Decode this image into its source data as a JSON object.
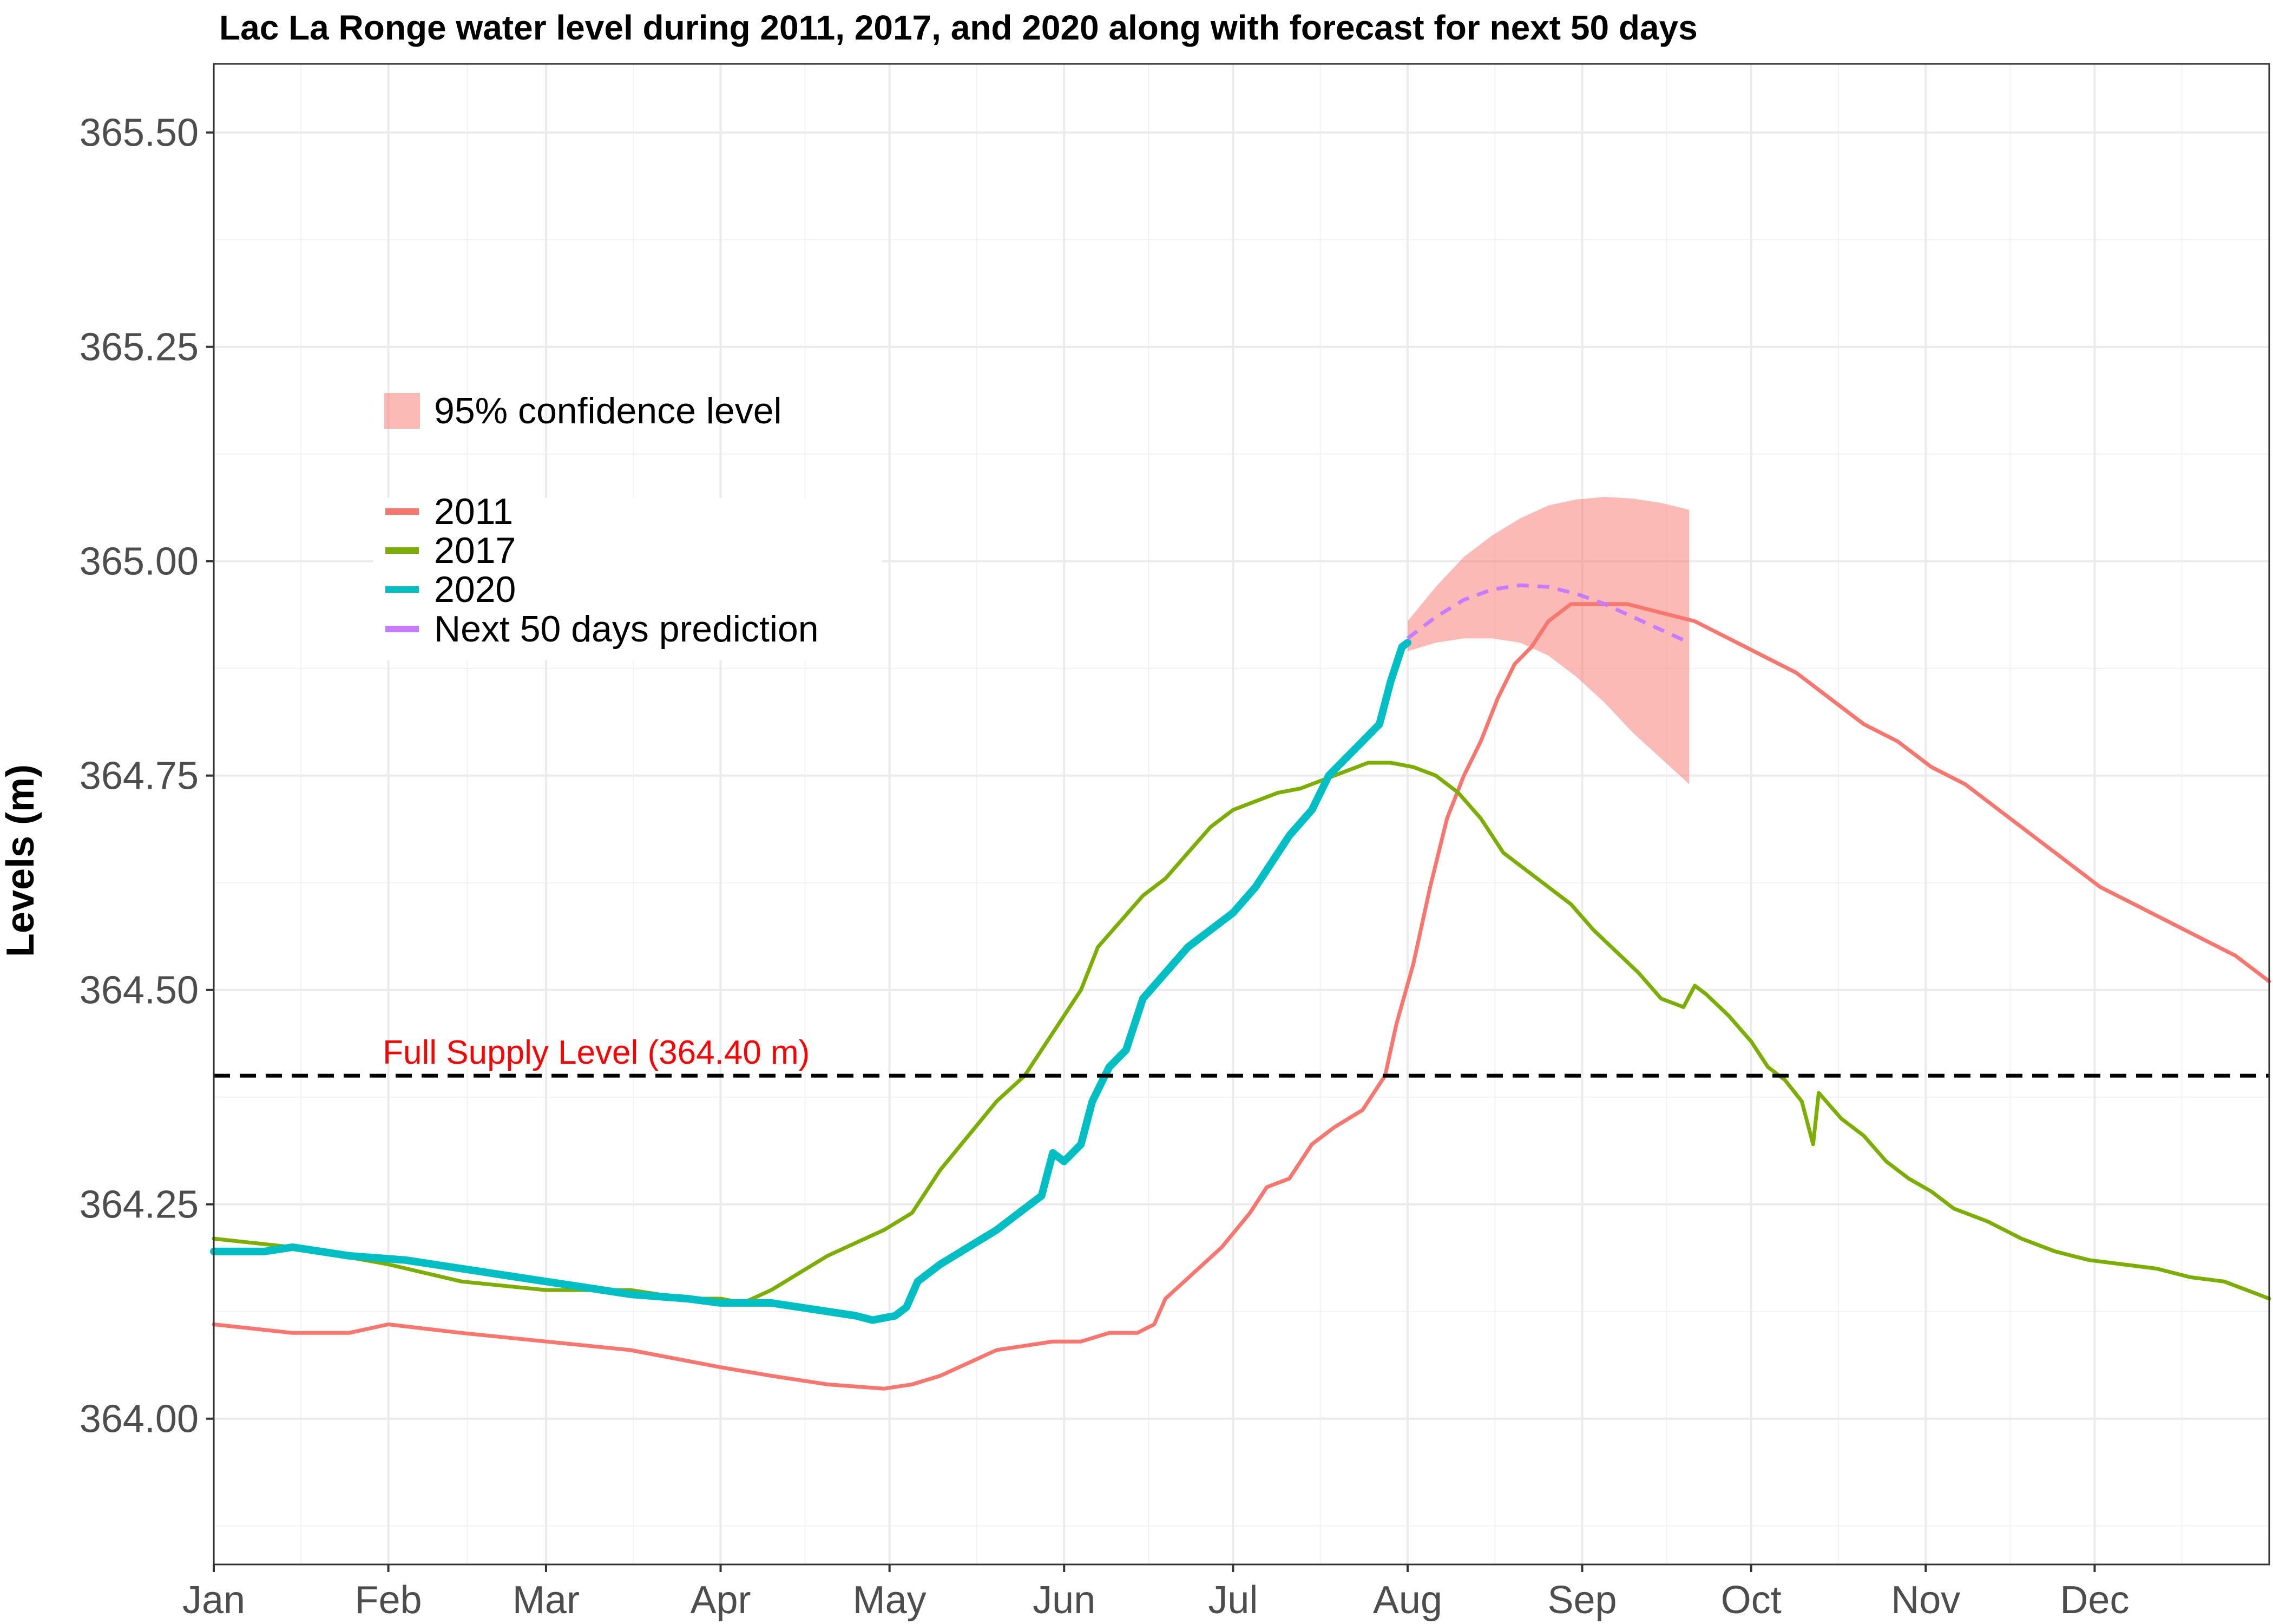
{
  "chart_data": {
    "type": "line",
    "title": "Lac La Ronge water level during 2011, 2017, and 2020 along with forecast for next 50 days",
    "xlabel": "",
    "ylabel": "Levels (m)",
    "x_domain": [
      1,
      366
    ],
    "ylim": [
      363.83,
      365.58
    ],
    "y_ticks": [
      364.0,
      364.25,
      364.5,
      364.75,
      365.0,
      365.25,
      365.5
    ],
    "y_tick_labels": [
      "364.00",
      "364.25",
      "364.50",
      "364.75",
      "365.00",
      "365.25",
      "365.50"
    ],
    "x_ticks": [
      {
        "day": 1,
        "label": "Jan"
      },
      {
        "day": 32,
        "label": "Feb"
      },
      {
        "day": 60,
        "label": "Mar"
      },
      {
        "day": 91,
        "label": "Apr"
      },
      {
        "day": 121,
        "label": "May"
      },
      {
        "day": 152,
        "label": "Jun"
      },
      {
        "day": 182,
        "label": "Jul"
      },
      {
        "day": 213,
        "label": "Aug"
      },
      {
        "day": 244,
        "label": "Sep"
      },
      {
        "day": 274,
        "label": "Oct"
      },
      {
        "day": 305,
        "label": "Nov"
      },
      {
        "day": 335,
        "label": "Dec"
      }
    ],
    "grid": true,
    "reference_line": {
      "y": 364.4,
      "label": "Full Supply Level (364.40 m)",
      "color": "#ff0000",
      "line_color": "#000000"
    },
    "series": [
      {
        "name": "2011",
        "color": "#f8766d",
        "width": 7,
        "points": [
          [
            1,
            364.11
          ],
          [
            15,
            364.1
          ],
          [
            25,
            364.1
          ],
          [
            32,
            364.11
          ],
          [
            45,
            364.1
          ],
          [
            60,
            364.09
          ],
          [
            75,
            364.08
          ],
          [
            91,
            364.06
          ],
          [
            100,
            364.05
          ],
          [
            110,
            364.04
          ],
          [
            120,
            364.035
          ],
          [
            125,
            364.04
          ],
          [
            130,
            364.05
          ],
          [
            135,
            364.065
          ],
          [
            140,
            364.08
          ],
          [
            145,
            364.085
          ],
          [
            150,
            364.09
          ],
          [
            155,
            364.09
          ],
          [
            160,
            364.1
          ],
          [
            165,
            364.1
          ],
          [
            168,
            364.11
          ],
          [
            170,
            364.14
          ],
          [
            175,
            364.17
          ],
          [
            180,
            364.2
          ],
          [
            185,
            364.24
          ],
          [
            188,
            364.27
          ],
          [
            192,
            364.28
          ],
          [
            196,
            364.32
          ],
          [
            200,
            364.34
          ],
          [
            205,
            364.36
          ],
          [
            209,
            364.4
          ],
          [
            211,
            364.46
          ],
          [
            214,
            364.53
          ],
          [
            217,
            364.62
          ],
          [
            220,
            364.7
          ],
          [
            223,
            364.75
          ],
          [
            226,
            364.79
          ],
          [
            229,
            364.84
          ],
          [
            232,
            364.88
          ],
          [
            235,
            364.9
          ],
          [
            238,
            364.93
          ],
          [
            242,
            364.95
          ],
          [
            246,
            364.95
          ],
          [
            252,
            364.95
          ],
          [
            258,
            364.94
          ],
          [
            264,
            364.93
          ],
          [
            270,
            364.91
          ],
          [
            276,
            364.89
          ],
          [
            282,
            364.87
          ],
          [
            288,
            364.84
          ],
          [
            294,
            364.81
          ],
          [
            300,
            364.79
          ],
          [
            306,
            364.76
          ],
          [
            312,
            364.74
          ],
          [
            318,
            364.71
          ],
          [
            324,
            364.68
          ],
          [
            330,
            364.65
          ],
          [
            336,
            364.62
          ],
          [
            342,
            364.6
          ],
          [
            348,
            364.58
          ],
          [
            354,
            364.56
          ],
          [
            360,
            364.54
          ],
          [
            366,
            364.51
          ]
        ]
      },
      {
        "name": "2017",
        "color": "#7cae00",
        "width": 7,
        "points": [
          [
            1,
            364.21
          ],
          [
            15,
            364.2
          ],
          [
            32,
            364.18
          ],
          [
            45,
            364.16
          ],
          [
            60,
            364.15
          ],
          [
            75,
            364.15
          ],
          [
            85,
            364.14
          ],
          [
            91,
            364.14
          ],
          [
            95,
            364.135
          ],
          [
            100,
            364.15
          ],
          [
            105,
            364.17
          ],
          [
            110,
            364.19
          ],
          [
            115,
            364.205
          ],
          [
            120,
            364.22
          ],
          [
            125,
            364.24
          ],
          [
            130,
            364.29
          ],
          [
            135,
            364.33
          ],
          [
            140,
            364.37
          ],
          [
            145,
            364.4
          ],
          [
            150,
            364.45
          ],
          [
            155,
            364.5
          ],
          [
            158,
            364.55
          ],
          [
            162,
            364.58
          ],
          [
            166,
            364.61
          ],
          [
            170,
            364.63
          ],
          [
            174,
            364.66
          ],
          [
            178,
            364.69
          ],
          [
            182,
            364.71
          ],
          [
            186,
            364.72
          ],
          [
            190,
            364.73
          ],
          [
            194,
            364.735
          ],
          [
            198,
            364.745
          ],
          [
            202,
            364.755
          ],
          [
            206,
            364.765
          ],
          [
            210,
            364.765
          ],
          [
            214,
            364.76
          ],
          [
            218,
            364.75
          ],
          [
            222,
            364.73
          ],
          [
            226,
            364.7
          ],
          [
            230,
            364.66
          ],
          [
            234,
            364.64
          ],
          [
            238,
            364.62
          ],
          [
            242,
            364.6
          ],
          [
            246,
            364.57
          ],
          [
            250,
            364.545
          ],
          [
            254,
            364.52
          ],
          [
            258,
            364.49
          ],
          [
            262,
            364.48
          ],
          [
            264,
            364.505
          ],
          [
            266,
            364.495
          ],
          [
            270,
            364.47
          ],
          [
            274,
            364.44
          ],
          [
            277,
            364.41
          ],
          [
            280,
            364.395
          ],
          [
            283,
            364.37
          ],
          [
            285,
            364.32
          ],
          [
            286,
            364.38
          ],
          [
            290,
            364.35
          ],
          [
            294,
            364.33
          ],
          [
            298,
            364.3
          ],
          [
            302,
            364.28
          ],
          [
            306,
            364.265
          ],
          [
            310,
            364.245
          ],
          [
            316,
            364.23
          ],
          [
            322,
            364.21
          ],
          [
            328,
            364.195
          ],
          [
            334,
            364.185
          ],
          [
            340,
            364.18
          ],
          [
            346,
            364.175
          ],
          [
            352,
            364.165
          ],
          [
            358,
            364.16
          ],
          [
            364,
            364.145
          ],
          [
            366,
            364.14
          ]
        ]
      },
      {
        "name": "2020",
        "color": "#00bfc4",
        "width": 14,
        "points": [
          [
            1,
            364.195
          ],
          [
            10,
            364.195
          ],
          [
            15,
            364.2
          ],
          [
            25,
            364.19
          ],
          [
            35,
            364.185
          ],
          [
            45,
            364.175
          ],
          [
            55,
            364.165
          ],
          [
            65,
            364.155
          ],
          [
            75,
            364.145
          ],
          [
            85,
            364.14
          ],
          [
            91,
            364.135
          ],
          [
            100,
            364.135
          ],
          [
            105,
            364.13
          ],
          [
            110,
            364.125
          ],
          [
            115,
            364.12
          ],
          [
            118,
            364.115
          ],
          [
            122,
            364.12
          ],
          [
            124,
            364.13
          ],
          [
            126,
            364.16
          ],
          [
            130,
            364.18
          ],
          [
            135,
            364.2
          ],
          [
            140,
            364.22
          ],
          [
            145,
            364.245
          ],
          [
            148,
            364.26
          ],
          [
            150,
            364.31
          ],
          [
            152,
            364.3
          ],
          [
            155,
            364.32
          ],
          [
            157,
            364.37
          ],
          [
            160,
            364.41
          ],
          [
            163,
            364.43
          ],
          [
            166,
            364.49
          ],
          [
            170,
            364.52
          ],
          [
            174,
            364.55
          ],
          [
            178,
            364.57
          ],
          [
            182,
            364.59
          ],
          [
            186,
            364.62
          ],
          [
            189,
            364.65
          ],
          [
            192,
            364.68
          ],
          [
            196,
            364.71
          ],
          [
            199,
            364.75
          ],
          [
            202,
            364.77
          ],
          [
            205,
            364.79
          ],
          [
            208,
            364.81
          ],
          [
            210,
            364.86
          ],
          [
            212,
            364.9
          ],
          [
            213,
            364.905
          ]
        ]
      },
      {
        "name": "Next 50 days prediction",
        "color": "#c77cff",
        "width": 7,
        "dashed": true,
        "points": [
          [
            213,
            364.91
          ],
          [
            218,
            364.935
          ],
          [
            223,
            364.955
          ],
          [
            228,
            364.967
          ],
          [
            233,
            364.972
          ],
          [
            238,
            364.97
          ],
          [
            243,
            364.962
          ],
          [
            248,
            364.95
          ],
          [
            253,
            364.935
          ],
          [
            258,
            364.92
          ],
          [
            263,
            364.905
          ]
        ]
      }
    ],
    "ribbon": {
      "name": "95% confidence level",
      "color": "#f8766d",
      "opacity": 0.5,
      "upper": [
        [
          213,
          364.93
        ],
        [
          218,
          364.97
        ],
        [
          223,
          365.005
        ],
        [
          228,
          365.03
        ],
        [
          233,
          365.05
        ],
        [
          238,
          365.065
        ],
        [
          243,
          365.072
        ],
        [
          248,
          365.075
        ],
        [
          253,
          365.073
        ],
        [
          258,
          365.068
        ],
        [
          263,
          365.06
        ]
      ],
      "lower": [
        [
          213,
          364.895
        ],
        [
          218,
          364.905
        ],
        [
          223,
          364.91
        ],
        [
          228,
          364.91
        ],
        [
          233,
          364.905
        ],
        [
          238,
          364.89
        ],
        [
          243,
          364.865
        ],
        [
          248,
          364.835
        ],
        [
          253,
          364.8
        ],
        [
          258,
          364.77
        ],
        [
          263,
          364.74
        ]
      ]
    },
    "legend": {
      "placement": "upper-left (inside plot)",
      "ribbon_entry": "95% confidence level",
      "line_entries": [
        "2011",
        "2017",
        "2020",
        "Next 50 days prediction"
      ]
    }
  }
}
